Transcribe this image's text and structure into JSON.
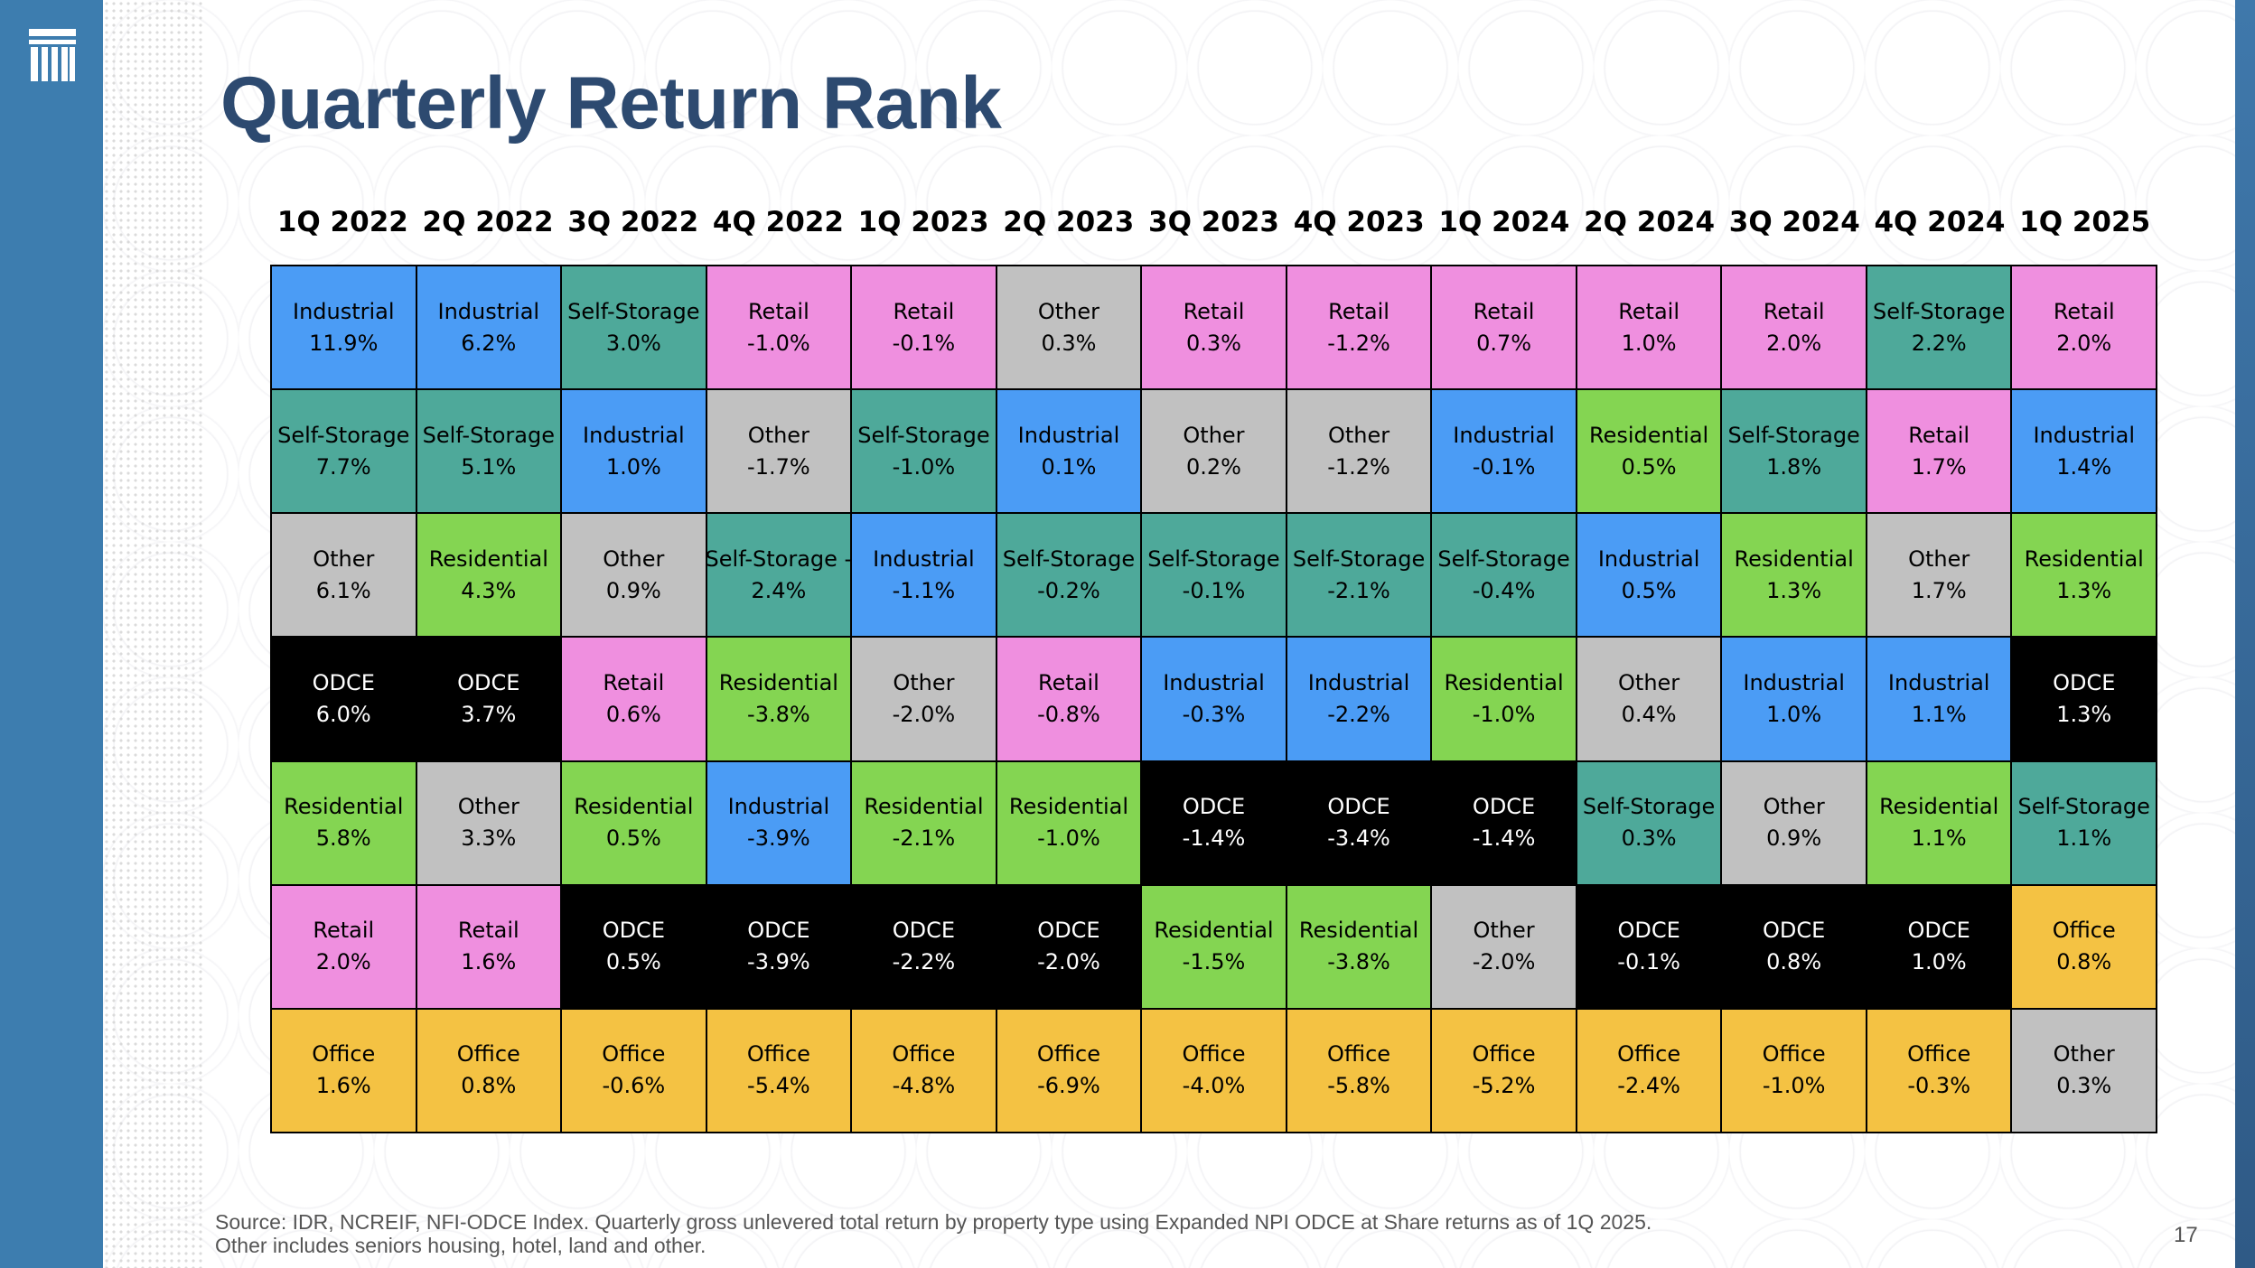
{
  "title": "Quarterly Return Rank",
  "colors": {
    "Industrial": "#4b9cf5",
    "Self-Storage": "#4ea99a",
    "Retail": "#ef8fdf",
    "Other": "#c1c1c1",
    "Residential": "#84d552",
    "ODCE": "#000000",
    "Office": "#f4c243",
    "title": "#2d4a70",
    "sidebar": "#3d7daf"
  },
  "chart_data": {
    "type": "table",
    "title": "Quarterly Return Rank",
    "columns": [
      "1Q 2022",
      "2Q 2022",
      "3Q 2022",
      "4Q 2022",
      "1Q 2023",
      "2Q 2023",
      "3Q 2023",
      "4Q 2023",
      "1Q 2024",
      "2Q 2024",
      "3Q 2024",
      "4Q 2024",
      "1Q 2025"
    ],
    "rows": [
      [
        [
          "Industrial",
          "11.9%"
        ],
        [
          "Industrial",
          "6.2%"
        ],
        [
          "Self-Storage",
          "3.0%"
        ],
        [
          "Retail",
          "-1.0%"
        ],
        [
          "Retail",
          "-0.1%"
        ],
        [
          "Other",
          "0.3%"
        ],
        [
          "Retail",
          "0.3%"
        ],
        [
          "Retail",
          "-1.2%"
        ],
        [
          "Retail",
          "0.7%"
        ],
        [
          "Retail",
          "1.0%"
        ],
        [
          "Retail",
          "2.0%"
        ],
        [
          "Self-Storage",
          "2.2%"
        ],
        [
          "Retail",
          "2.0%"
        ]
      ],
      [
        [
          "Self-Storage",
          "7.7%"
        ],
        [
          "Self-Storage",
          "5.1%"
        ],
        [
          "Industrial",
          "1.0%"
        ],
        [
          "Other",
          "-1.7%"
        ],
        [
          "Self-Storage",
          "-1.0%"
        ],
        [
          "Industrial",
          "0.1%"
        ],
        [
          "Other",
          "0.2%"
        ],
        [
          "Other",
          "-1.2%"
        ],
        [
          "Industrial",
          "-0.1%"
        ],
        [
          "Residential",
          "0.5%"
        ],
        [
          "Self-Storage",
          "1.8%"
        ],
        [
          "Retail",
          "1.7%"
        ],
        [
          "Industrial",
          "1.4%"
        ]
      ],
      [
        [
          "Other",
          "6.1%"
        ],
        [
          "Residential",
          "4.3%"
        ],
        [
          "Other",
          "0.9%"
        ],
        [
          "Self-Storage -",
          "2.4%",
          "Self-Storage"
        ],
        [
          "Industrial",
          "-1.1%"
        ],
        [
          "Self-Storage",
          "-0.2%"
        ],
        [
          "Self-Storage",
          "-0.1%"
        ],
        [
          "Self-Storage",
          "-2.1%"
        ],
        [
          "Self-Storage",
          "-0.4%"
        ],
        [
          "Industrial",
          "0.5%"
        ],
        [
          "Residential",
          "1.3%"
        ],
        [
          "Other",
          "1.7%"
        ],
        [
          "Residential",
          "1.3%"
        ]
      ],
      [
        [
          "ODCE",
          "6.0%"
        ],
        [
          "ODCE",
          "3.7%"
        ],
        [
          "Retail",
          "0.6%"
        ],
        [
          "Residential",
          "-3.8%"
        ],
        [
          "Other",
          "-2.0%"
        ],
        [
          "Retail",
          "-0.8%"
        ],
        [
          "Industrial",
          "-0.3%"
        ],
        [
          "Industrial",
          "-2.2%"
        ],
        [
          "Residential",
          "-1.0%"
        ],
        [
          "Other",
          "0.4%"
        ],
        [
          "Industrial",
          "1.0%"
        ],
        [
          "Industrial",
          "1.1%"
        ],
        [
          "ODCE",
          "1.3%"
        ]
      ],
      [
        [
          "Residential",
          "5.8%"
        ],
        [
          "Other",
          "3.3%"
        ],
        [
          "Residential",
          "0.5%"
        ],
        [
          "Industrial",
          "-3.9%"
        ],
        [
          "Residential",
          "-2.1%"
        ],
        [
          "Residential",
          "-1.0%"
        ],
        [
          "ODCE",
          "-1.4%"
        ],
        [
          "ODCE",
          "-3.4%"
        ],
        [
          "ODCE",
          "-1.4%"
        ],
        [
          "Self-Storage",
          "0.3%"
        ],
        [
          "Other",
          "0.9%"
        ],
        [
          "Residential",
          "1.1%"
        ],
        [
          "Self-Storage",
          "1.1%"
        ]
      ],
      [
        [
          "Retail",
          "2.0%"
        ],
        [
          "Retail",
          "1.6%"
        ],
        [
          "ODCE",
          "0.5%"
        ],
        [
          "ODCE",
          "-3.9%"
        ],
        [
          "ODCE",
          "-2.2%"
        ],
        [
          "ODCE",
          "-2.0%"
        ],
        [
          "Residential",
          "-1.5%"
        ],
        [
          "Residential",
          "-3.8%"
        ],
        [
          "Other",
          "-2.0%"
        ],
        [
          "ODCE",
          "-0.1%"
        ],
        [
          "ODCE",
          "0.8%"
        ],
        [
          "ODCE",
          "1.0%"
        ],
        [
          "Office",
          "0.8%"
        ]
      ],
      [
        [
          "Office",
          "1.6%"
        ],
        [
          "Office",
          "0.8%"
        ],
        [
          "Office",
          "-0.6%"
        ],
        [
          "Office",
          "-5.4%"
        ],
        [
          "Office",
          "-4.8%"
        ],
        [
          "Office",
          "-6.9%"
        ],
        [
          "Office",
          "-4.0%"
        ],
        [
          "Office",
          "-5.8%"
        ],
        [
          "Office",
          "-5.2%"
        ],
        [
          "Office",
          "-2.4%"
        ],
        [
          "Office",
          "-1.0%"
        ],
        [
          "Office",
          "-0.3%"
        ],
        [
          "Other",
          "0.3%"
        ]
      ]
    ]
  },
  "footer": {
    "source_line1": "Source: IDR, NCREIF, NFI-ODCE Index. Quarterly gross unlevered total return by property type using Expanded NPI ODCE at Share returns as of 1Q 2025.",
    "source_line2": "Other includes seniors housing, hotel, land and other.",
    "page_number": "17"
  }
}
